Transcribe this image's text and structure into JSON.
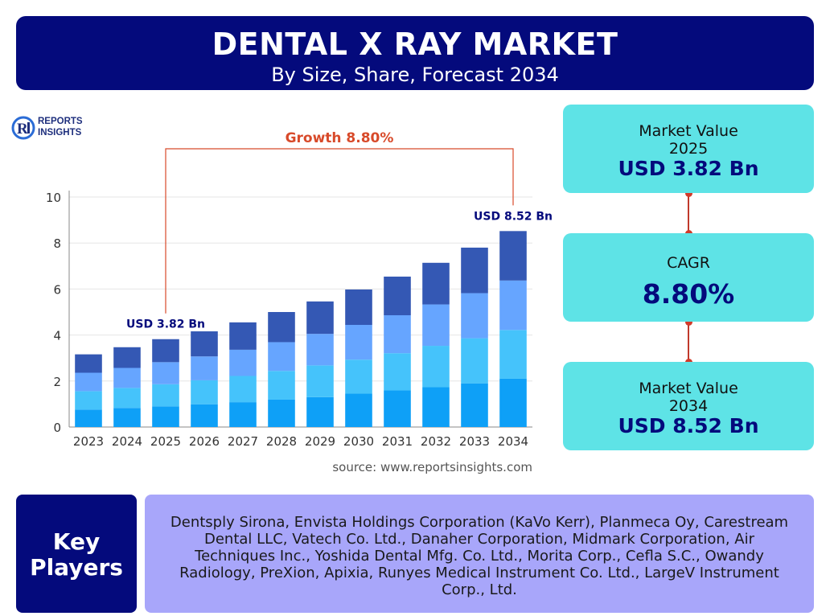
{
  "header": {
    "title": "DENTAL X RAY MARKET",
    "subtitle": "By Size, Share, Forecast 2034"
  },
  "logo": {
    "line1": "REPORTS",
    "line2": "INSIGHTS",
    "mark": "Ri"
  },
  "growth_label": "Growth 8.80%",
  "source": "source: www.reportsinsights.com",
  "chart_data": {
    "type": "bar",
    "stacked": true,
    "categories": [
      "2023",
      "2024",
      "2025",
      "2026",
      "2027",
      "2028",
      "2029",
      "2030",
      "2031",
      "2032",
      "2033",
      "2034"
    ],
    "series": [
      {
        "values": [
          0.76,
          0.83,
          0.9,
          0.99,
          1.08,
          1.19,
          1.3,
          1.45,
          1.59,
          1.73,
          1.9,
          2.1
        ]
      },
      {
        "values": [
          0.8,
          0.87,
          0.96,
          1.04,
          1.14,
          1.25,
          1.38,
          1.48,
          1.62,
          1.8,
          1.96,
          2.12
        ]
      },
      {
        "values": [
          0.8,
          0.87,
          0.96,
          1.04,
          1.14,
          1.25,
          1.37,
          1.51,
          1.65,
          1.8,
          1.96,
          2.15
        ]
      },
      {
        "values": [
          0.8,
          0.9,
          1.0,
          1.09,
          1.19,
          1.31,
          1.41,
          1.54,
          1.68,
          1.81,
          1.98,
          2.15
        ]
      }
    ],
    "colors": [
      "#0ea0f7",
      "#45c3fb",
      "#66a5ff",
      "#3458b4"
    ],
    "totals": [
      3.16,
      3.47,
      3.82,
      4.16,
      4.55,
      5.0,
      5.46,
      5.98,
      6.54,
      7.14,
      7.8,
      8.52
    ],
    "ylim": [
      0,
      10
    ],
    "yticks": [
      "0",
      "2",
      "4",
      "6",
      "8",
      "10"
    ],
    "grid": true,
    "annotations": [
      {
        "text": "USD 3.82 Bn",
        "category": "2025"
      },
      {
        "text": "USD 8.52 Bn",
        "category": "2034"
      }
    ],
    "annotation_color": "#040a7c",
    "growth_color": "#d84a2a"
  },
  "cards": {
    "c1": {
      "label": "Market Value",
      "year": "2025",
      "value": "USD 3.82 Bn"
    },
    "c2": {
      "label": "CAGR",
      "value": "8.80%"
    },
    "c3": {
      "label": "Market Value",
      "year": "2034",
      "value": "USD 8.52 Bn"
    }
  },
  "key_players": {
    "title_line1": "Key",
    "title_line2": "Players",
    "text": "Dentsply Sirona, Envista Holdings Corporation (KaVo Kerr), Planmeca Oy, Carestream Dental LLC, Vatech Co. Ltd., Danaher Corporation, Midmark Corporation, Air Techniques Inc., Yoshida Dental Mfg. Co. Ltd., Morita Corp., Cefla S.C., Owandy Radiology, PreXion, Apixia, Runyes Medical Instrument Co. Ltd., LargeV Instrument Corp., Ltd."
  }
}
